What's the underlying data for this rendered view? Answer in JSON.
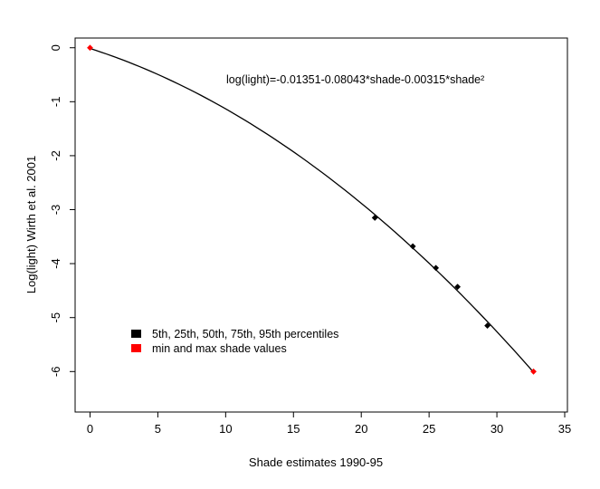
{
  "chart_data": {
    "type": "scatter",
    "title": "",
    "xlabel": "Shade estimates 1990-95",
    "ylabel": "Log(light) Wirth et al. 2001",
    "xlim": [
      -1.1,
      35.2
    ],
    "ylim": [
      -6.75,
      0.18
    ],
    "x_ticks": [
      0,
      5,
      10,
      15,
      20,
      25,
      30,
      35
    ],
    "y_ticks": [
      0,
      -1,
      -2,
      -3,
      -4,
      -5,
      -6
    ],
    "grid": false,
    "legend_position": "lower-left",
    "equation": "log(light)=-0.01351-0.08043*shade-0.00315*shade²",
    "fit_curve": {
      "intercept": -0.01351,
      "linear": -0.08043,
      "quadratic": -0.00315,
      "x_range": [
        0,
        32.7
      ],
      "color": "#000000"
    },
    "series": [
      {
        "name": "5th, 25th, 50th, 75th, 95th percentiles",
        "color": "#000000",
        "marker": "diamond",
        "points": [
          {
            "x": 21.0,
            "y": -3.15
          },
          {
            "x": 23.8,
            "y": -3.68
          },
          {
            "x": 25.5,
            "y": -4.08
          },
          {
            "x": 27.1,
            "y": -4.43
          },
          {
            "x": 29.3,
            "y": -5.15
          }
        ]
      },
      {
        "name": "min and max shade values",
        "color": "#ff0000",
        "marker": "diamond",
        "points": [
          {
            "x": 0.0,
            "y": 0.0
          },
          {
            "x": 32.7,
            "y": -6.0
          }
        ]
      }
    ]
  }
}
